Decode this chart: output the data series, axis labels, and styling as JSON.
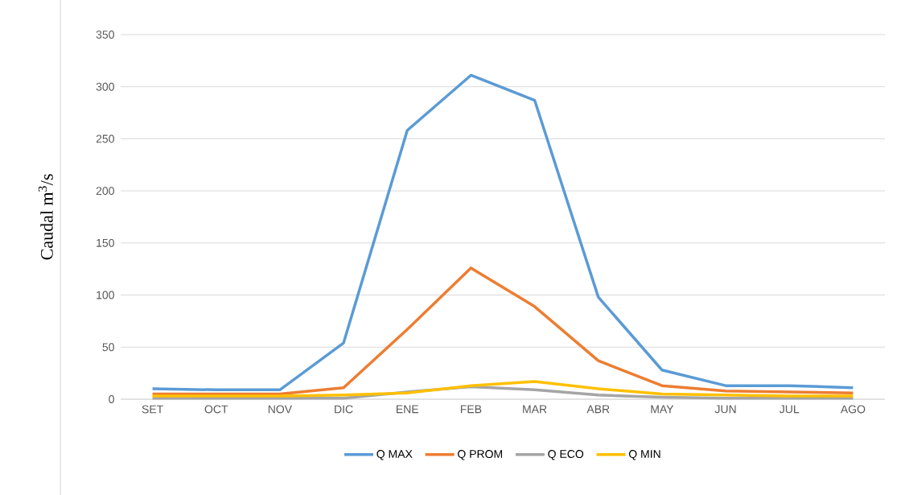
{
  "chart_data": {
    "type": "line",
    "ylabel": "Caudal m$^{3}$/s",
    "categories": [
      "SET",
      "OCT",
      "NOV",
      "DIC",
      "ENE",
      "FEB",
      "MAR",
      "ABR",
      "MAY",
      "JUN",
      "JUL",
      "AGO"
    ],
    "series": [
      {
        "name": "Q MAX",
        "color": "#5b9bd5",
        "values": [
          10,
          9,
          9,
          54,
          258,
          311,
          287,
          98,
          28,
          13,
          13,
          11
        ]
      },
      {
        "name": "Q PROM",
        "color": "#ed7d31",
        "values": [
          5,
          5,
          5,
          11,
          67,
          126,
          89,
          37,
          13,
          8,
          7,
          6
        ]
      },
      {
        "name": "Q ECO",
        "color": "#a5a5a5",
        "values": [
          1,
          1,
          1,
          1,
          7,
          12,
          9,
          4,
          2,
          1,
          1,
          1
        ]
      },
      {
        "name": "Q MIN",
        "color": "#ffc000",
        "values": [
          3,
          3,
          3,
          4,
          6,
          13,
          17,
          10,
          5,
          4,
          3,
          3
        ]
      }
    ],
    "ylim": [
      0,
      350
    ],
    "yticks": [
      0,
      50,
      100,
      150,
      200,
      250,
      300,
      350
    ],
    "grid": "y",
    "legend": "bottom",
    "marker": "none",
    "line_style": "solid"
  }
}
